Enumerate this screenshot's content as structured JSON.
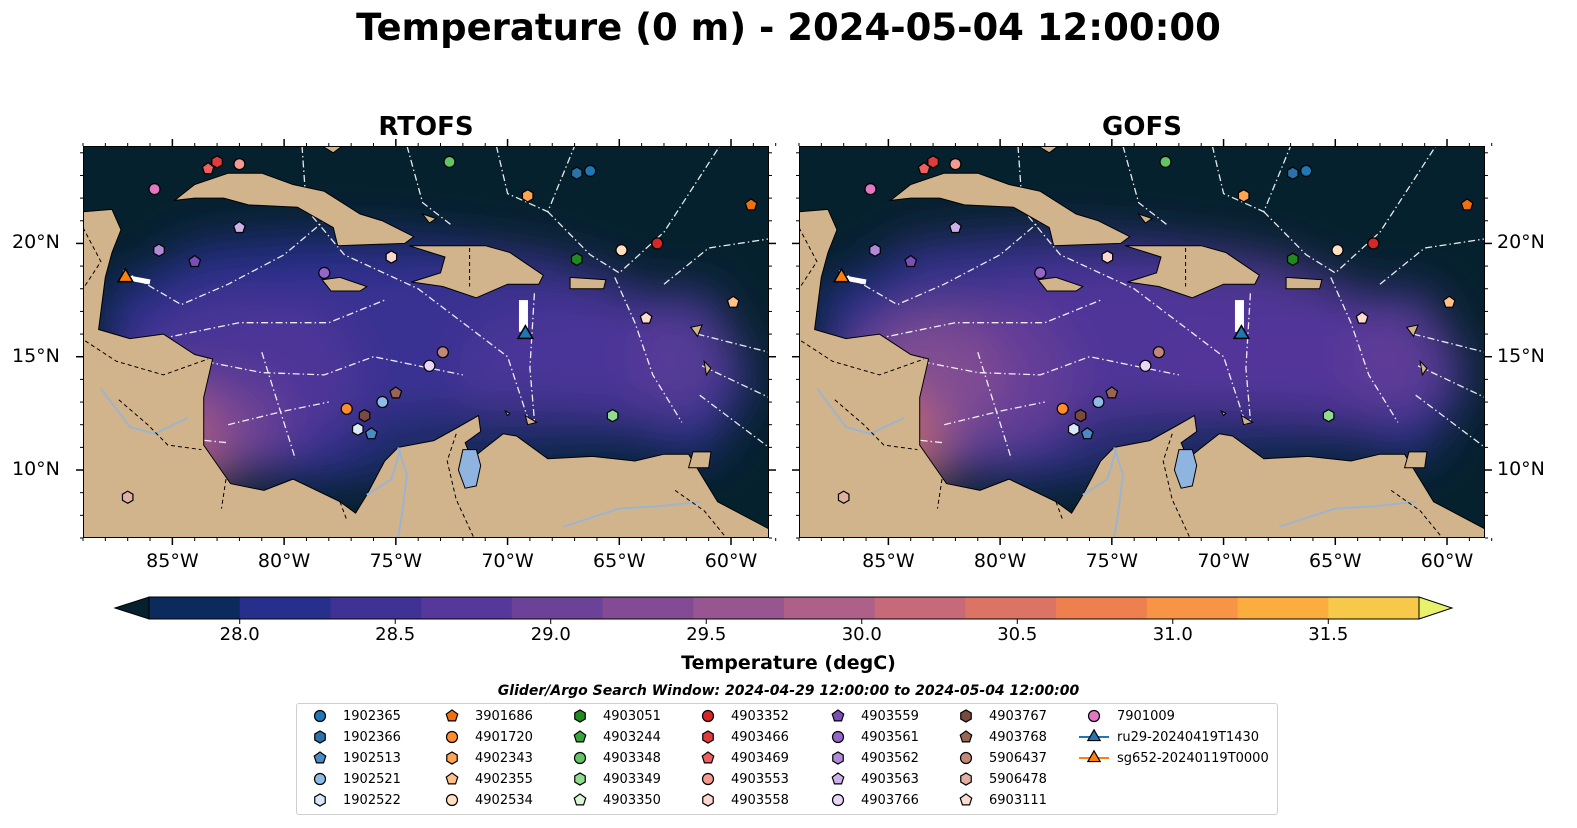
{
  "title": "Temperature (0 m) - 2024-05-04 12:00:00",
  "maps": [
    {
      "title": "RTOFS"
    },
    {
      "title": "GOFS"
    }
  ],
  "axes": {
    "x_ticks": [
      "85°W",
      "80°W",
      "75°W",
      "70°W",
      "65°W",
      "60°W"
    ],
    "x_values": [
      -85,
      -80,
      -75,
      -70,
      -65,
      -60
    ],
    "y_ticks": [
      "20°N",
      "15°N",
      "10°N"
    ],
    "y_values": [
      20,
      15,
      10
    ],
    "lon_range": [
      -89,
      -58.3
    ],
    "lat_range": [
      7,
      24.3
    ]
  },
  "colorbar": {
    "label": "Temperature (degC)",
    "ticks": [
      "28.0",
      "28.5",
      "29.0",
      "29.5",
      "30.0",
      "30.5",
      "31.0",
      "31.5"
    ],
    "range": [
      28.0,
      31.5
    ],
    "extend": "both",
    "colors": [
      "#06212e",
      "#0c2a5c",
      "#262f8c",
      "#3f3294",
      "#56389a",
      "#6c4298",
      "#824b94",
      "#985690",
      "#ae6088",
      "#c66a7a",
      "#dc7466",
      "#ee8050",
      "#f79446",
      "#fbad3f",
      "#f7c94a",
      "#e7f16a"
    ]
  },
  "search_window": "Glider/Argo Search Window: 2024-04-29 12:00:00 to 2024-05-04 12:00:00",
  "land_color": "#d2b48c",
  "lake_color": "#8fb4e0",
  "legend": [
    {
      "label": "1902365",
      "marker": "circle",
      "color": "#1f77b4"
    },
    {
      "label": "1902366",
      "marker": "hexagon",
      "color": "#2a72a8"
    },
    {
      "label": "1902513",
      "marker": "pentagon",
      "color": "#4a8ac6"
    },
    {
      "label": "1902521",
      "marker": "circle",
      "color": "#8fbce6"
    },
    {
      "label": "1902522",
      "marker": "hexagon",
      "color": "#d8eafa"
    },
    {
      "label": "3901686",
      "marker": "pentagon",
      "color": "#f07010"
    },
    {
      "label": "4901720",
      "marker": "circle",
      "color": "#ff8c2e"
    },
    {
      "label": "4902343",
      "marker": "hexagon",
      "color": "#ffa552"
    },
    {
      "label": "4902355",
      "marker": "pentagon",
      "color": "#ffc08a"
    },
    {
      "label": "4902534",
      "marker": "circle",
      "color": "#ffe0c0"
    },
    {
      "label": "4903051",
      "marker": "hexagon",
      "color": "#208a20"
    },
    {
      "label": "4903244",
      "marker": "pentagon",
      "color": "#3aa33a"
    },
    {
      "label": "4903348",
      "marker": "circle",
      "color": "#62c462"
    },
    {
      "label": "4903349",
      "marker": "hexagon",
      "color": "#90dc8e"
    },
    {
      "label": "4903350",
      "marker": "pentagon",
      "color": "#d8f5d4"
    },
    {
      "label": "4903352",
      "marker": "circle",
      "color": "#d62728"
    },
    {
      "label": "4903466",
      "marker": "hexagon",
      "color": "#e03c3c"
    },
    {
      "label": "4903469",
      "marker": "pentagon",
      "color": "#ee6060"
    },
    {
      "label": "4903553",
      "marker": "circle",
      "color": "#f59a90"
    },
    {
      "label": "4903558",
      "marker": "hexagon",
      "color": "#fcd6d0"
    },
    {
      "label": "4903559",
      "marker": "pentagon",
      "color": "#7b4fb8"
    },
    {
      "label": "4903561",
      "marker": "circle",
      "color": "#9466c8"
    },
    {
      "label": "4903562",
      "marker": "hexagon",
      "color": "#b08ad8"
    },
    {
      "label": "4903563",
      "marker": "pentagon",
      "color": "#ccb0ea"
    },
    {
      "label": "4903766",
      "marker": "circle",
      "color": "#e8d6f8"
    },
    {
      "label": "4903767",
      "marker": "hexagon",
      "color": "#7a4a3e"
    },
    {
      "label": "4903768",
      "marker": "pentagon",
      "color": "#9a6454"
    },
    {
      "label": "5906437",
      "marker": "circle",
      "color": "#c08878"
    },
    {
      "label": "5906478",
      "marker": "hexagon",
      "color": "#e0b0a0"
    },
    {
      "label": "6903111",
      "marker": "pentagon",
      "color": "#fcdcd2"
    },
    {
      "label": "7901009",
      "marker": "circle",
      "color": "#e377c2"
    },
    {
      "label": "ru29-20240419T1430",
      "marker": "triangle-line",
      "color": "#1f77b4"
    },
    {
      "label": "sg652-20240119T0000",
      "marker": "triangle-line",
      "color": "#ff7f0e"
    }
  ],
  "floats": [
    {
      "marker": "circle",
      "color": "#1f77b4",
      "lon": -66.3,
      "lat": 23.2
    },
    {
      "marker": "hexagon",
      "color": "#2a72a8",
      "lon": -66.9,
      "lat": 23.1
    },
    {
      "marker": "pentagon",
      "color": "#4a8ac6",
      "lon": -76.1,
      "lat": 11.6
    },
    {
      "marker": "circle",
      "color": "#8fbce6",
      "lon": -75.6,
      "lat": 13.0
    },
    {
      "marker": "hexagon",
      "color": "#d8eafa",
      "lon": -76.7,
      "lat": 11.8
    },
    {
      "marker": "pentagon",
      "color": "#f07010",
      "lon": -59.1,
      "lat": 21.7
    },
    {
      "marker": "circle",
      "color": "#ff8c2e",
      "lon": -77.2,
      "lat": 12.7
    },
    {
      "marker": "hexagon",
      "color": "#ffa552",
      "lon": -69.1,
      "lat": 22.1
    },
    {
      "marker": "pentagon",
      "color": "#ffc08a",
      "lon": -59.9,
      "lat": 17.4
    },
    {
      "marker": "circle",
      "color": "#ffe0c0",
      "lon": -64.9,
      "lat": 19.7
    },
    {
      "marker": "hexagon",
      "color": "#208a20",
      "lon": -66.9,
      "lat": 19.3
    },
    {
      "marker": "circle",
      "color": "#62c462",
      "lon": -72.6,
      "lat": 23.6
    },
    {
      "marker": "hexagon",
      "color": "#90dc8e",
      "lon": -65.3,
      "lat": 12.4
    },
    {
      "marker": "circle",
      "color": "#d62728",
      "lon": -63.3,
      "lat": 20.0
    },
    {
      "marker": "hexagon",
      "color": "#e03c3c",
      "lon": -83.0,
      "lat": 23.6
    },
    {
      "marker": "pentagon",
      "color": "#ee6060",
      "lon": -83.4,
      "lat": 23.3
    },
    {
      "marker": "circle",
      "color": "#f59a90",
      "lon": -82.0,
      "lat": 23.5
    },
    {
      "marker": "hexagon",
      "color": "#fcd6d0",
      "lon": -75.2,
      "lat": 19.4
    },
    {
      "marker": "pentagon",
      "color": "#7b4fb8",
      "lon": -84.0,
      "lat": 19.2
    },
    {
      "marker": "circle",
      "color": "#9466c8",
      "lon": -78.2,
      "lat": 18.7
    },
    {
      "marker": "hexagon",
      "color": "#b08ad8",
      "lon": -85.6,
      "lat": 19.7
    },
    {
      "marker": "pentagon",
      "color": "#ccb0ea",
      "lon": -82.0,
      "lat": 20.7
    },
    {
      "marker": "circle",
      "color": "#e8d6f8",
      "lon": -73.5,
      "lat": 14.6
    },
    {
      "marker": "hexagon",
      "color": "#7a4a3e",
      "lon": -76.4,
      "lat": 12.4
    },
    {
      "marker": "pentagon",
      "color": "#9a6454",
      "lon": -75.0,
      "lat": 13.4
    },
    {
      "marker": "circle",
      "color": "#c08878",
      "lon": -72.9,
      "lat": 15.2
    },
    {
      "marker": "hexagon",
      "color": "#e0b0a0",
      "lon": -87.0,
      "lat": 8.8
    },
    {
      "marker": "pentagon",
      "color": "#fcdcd2",
      "lon": -63.8,
      "lat": 16.7
    },
    {
      "marker": "circle",
      "color": "#e377c2",
      "lon": -85.8,
      "lat": 22.4
    }
  ],
  "gliders": [
    {
      "color": "#1f77b4",
      "lon": -69.2,
      "lat": 16.0
    },
    {
      "color": "#ff7f0e",
      "lon": -87.1,
      "lat": 18.5
    }
  ]
}
